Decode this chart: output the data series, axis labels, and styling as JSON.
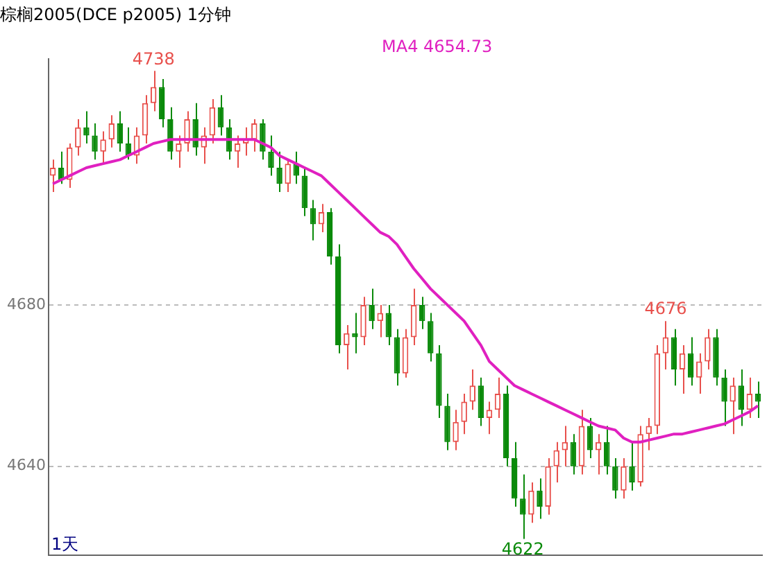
{
  "chart_data": {
    "type": "candlestick",
    "title": "棕榈2005(DCE p2005) 1分钟",
    "categories": [
      null,
      null,
      null,
      null,
      null,
      null,
      null,
      null,
      null,
      null,
      null,
      null,
      null,
      null,
      null,
      null,
      null,
      null,
      null,
      null,
      null,
      null,
      null,
      null,
      null,
      null,
      null,
      null,
      null,
      null,
      null,
      null,
      null,
      null,
      null,
      null,
      null,
      null,
      null,
      null,
      null,
      null,
      null,
      null,
      null,
      null,
      null,
      null,
      null,
      null,
      null,
      null,
      null,
      null,
      null,
      null,
      null,
      null,
      null,
      null,
      null,
      null,
      null,
      null,
      null,
      null,
      null,
      null,
      null,
      null,
      null,
      null,
      null,
      null,
      null,
      null,
      null,
      null,
      null,
      null,
      null,
      null,
      null,
      null,
      null
    ],
    "ohlc": [
      [
        4712,
        4716,
        4708,
        4714
      ],
      [
        4714,
        4718,
        4710,
        4711
      ],
      [
        4711,
        4720,
        4709,
        4719
      ],
      [
        4719,
        4726,
        4717,
        4724
      ],
      [
        4724,
        4728,
        4720,
        4722
      ],
      [
        4722,
        4725,
        4716,
        4718
      ],
      [
        4718,
        4723,
        4715,
        4721
      ],
      [
        4721,
        4727,
        4719,
        4725
      ],
      [
        4725,
        4728,
        4718,
        4720
      ],
      [
        4720,
        4724,
        4716,
        4717
      ],
      [
        4717,
        4724,
        4715,
        4722
      ],
      [
        4722,
        4732,
        4720,
        4730
      ],
      [
        4730,
        4738,
        4728,
        4734
      ],
      [
        4734,
        4736,
        4724,
        4726
      ],
      [
        4726,
        4729,
        4716,
        4718
      ],
      [
        4718,
        4722,
        4714,
        4720
      ],
      [
        4720,
        4728,
        4718,
        4726
      ],
      [
        4726,
        4730,
        4717,
        4719
      ],
      [
        4719,
        4724,
        4715,
        4722
      ],
      [
        4722,
        4731,
        4720,
        4729
      ],
      [
        4729,
        4732,
        4722,
        4724
      ],
      [
        4724,
        4726,
        4716,
        4718
      ],
      [
        4718,
        4722,
        4714,
        4720
      ],
      [
        4720,
        4724,
        4717,
        4721
      ],
      [
        4721,
        4726,
        4718,
        4725
      ],
      [
        4725,
        4726,
        4716,
        4718
      ],
      [
        4718,
        4722,
        4712,
        4714
      ],
      [
        4714,
        4718,
        4708,
        4710
      ],
      [
        4710,
        4716,
        4708,
        4715
      ],
      [
        4715,
        4718,
        4710,
        4712
      ],
      [
        4712,
        4714,
        4702,
        4704
      ],
      [
        4704,
        4706,
        4696,
        4700
      ],
      [
        4700,
        4705,
        4698,
        4703
      ],
      [
        4703,
        4704,
        4690,
        4692
      ],
      [
        4692,
        4695,
        4668,
        4670
      ],
      [
        4670,
        4675,
        4664,
        4673
      ],
      [
        4673,
        4678,
        4668,
        4672
      ],
      [
        4672,
        4682,
        4670,
        4680
      ],
      [
        4680,
        4684,
        4674,
        4676
      ],
      [
        4676,
        4680,
        4672,
        4678
      ],
      [
        4678,
        4680,
        4670,
        4672
      ],
      [
        4672,
        4674,
        4660,
        4663
      ],
      [
        4663,
        4674,
        4662,
        4672
      ],
      [
        4672,
        4684,
        4670,
        4680
      ],
      [
        4680,
        4682,
        4674,
        4676
      ],
      [
        4676,
        4678,
        4666,
        4668
      ],
      [
        4668,
        4670,
        4652,
        4655
      ],
      [
        4655,
        4658,
        4644,
        4646
      ],
      [
        4646,
        4654,
        4644,
        4651
      ],
      [
        4651,
        4658,
        4648,
        4656
      ],
      [
        4656,
        4664,
        4654,
        4660
      ],
      [
        4660,
        4662,
        4650,
        4652
      ],
      [
        4652,
        4656,
        4648,
        4654
      ],
      [
        4654,
        4662,
        4652,
        4658
      ],
      [
        4658,
        4660,
        4640,
        4642
      ],
      [
        4642,
        4646,
        4630,
        4632
      ],
      [
        4632,
        4638,
        4622,
        4628
      ],
      [
        4628,
        4636,
        4626,
        4634
      ],
      [
        4634,
        4637,
        4627,
        4630
      ],
      [
        4630,
        4642,
        4628,
        4640
      ],
      [
        4640,
        4646,
        4636,
        4644
      ],
      [
        4644,
        4650,
        4640,
        4646
      ],
      [
        4646,
        4648,
        4638,
        4640
      ],
      [
        4640,
        4654,
        4638,
        4650
      ],
      [
        4650,
        4652,
        4642,
        4644
      ],
      [
        4644,
        4648,
        4638,
        4646
      ],
      [
        4646,
        4650,
        4638,
        4640
      ],
      [
        4640,
        4642,
        4632,
        4634
      ],
      [
        4634,
        4642,
        4632,
        4640
      ],
      [
        4640,
        4646,
        4634,
        4636
      ],
      [
        4636,
        4650,
        4635,
        4648
      ],
      [
        4648,
        4652,
        4644,
        4650
      ],
      [
        4650,
        4670,
        4648,
        4668
      ],
      [
        4668,
        4676,
        4664,
        4672
      ],
      [
        4672,
        4674,
        4660,
        4664
      ],
      [
        4664,
        4670,
        4658,
        4668
      ],
      [
        4668,
        4672,
        4660,
        4662
      ],
      [
        4662,
        4668,
        4658,
        4666
      ],
      [
        4666,
        4674,
        4664,
        4672
      ],
      [
        4672,
        4674,
        4660,
        4662
      ],
      [
        4662,
        4664,
        4650,
        4656
      ],
      [
        4656,
        4662,
        4648,
        4660
      ],
      [
        4660,
        4664,
        4650,
        4654
      ],
      [
        4654,
        4662,
        4652,
        4658
      ],
      [
        4658,
        4661,
        4652,
        4656
      ]
    ],
    "colors": [
      "#e8504c",
      "#0a8a0a",
      "#e8504c",
      "#e8504c",
      "#0a8a0a",
      "#0a8a0a",
      "#e8504c",
      "#e8504c",
      "#0a8a0a",
      "#0a8a0a",
      "#e8504c",
      "#e8504c",
      "#e8504c",
      "#0a8a0a",
      "#0a8a0a",
      "#e8504c",
      "#e8504c",
      "#0a8a0a",
      "#e8504c",
      "#e8504c",
      "#0a8a0a",
      "#0a8a0a",
      "#e8504c",
      "#e8504c",
      "#e8504c",
      "#0a8a0a",
      "#0a8a0a",
      "#0a8a0a",
      "#e8504c",
      "#0a8a0a",
      "#0a8a0a",
      "#0a8a0a",
      "#e8504c",
      "#0a8a0a",
      "#0a8a0a",
      "#e8504c",
      "#0a8a0a",
      "#e8504c",
      "#0a8a0a",
      "#e8504c",
      "#0a8a0a",
      "#0a8a0a",
      "#e8504c",
      "#e8504c",
      "#0a8a0a",
      "#0a8a0a",
      "#0a8a0a",
      "#0a8a0a",
      "#e8504c",
      "#e8504c",
      "#e8504c",
      "#0a8a0a",
      "#e8504c",
      "#e8504c",
      "#0a8a0a",
      "#0a8a0a",
      "#0a8a0a",
      "#e8504c",
      "#0a8a0a",
      "#e8504c",
      "#e8504c",
      "#e8504c",
      "#0a8a0a",
      "#e8504c",
      "#0a8a0a",
      "#e8504c",
      "#0a8a0a",
      "#0a8a0a",
      "#e8504c",
      "#0a8a0a",
      "#e8504c",
      "#e8504c",
      "#e8504c",
      "#e8504c",
      "#0a8a0a",
      "#e8504c",
      "#0a8a0a",
      "#e8504c",
      "#e8504c",
      "#0a8a0a",
      "#0a8a0a",
      "#e8504c",
      "#0a8a0a",
      "#e8504c",
      "#0a8a0a"
    ],
    "series": [
      {
        "type": "line",
        "name": "MA4 4654.73",
        "color": "#e020c0",
        "values": [
          4710,
          4711,
          4712,
          4713,
          4714,
          4714.5,
          4715,
          4715.5,
          4716,
          4717,
          4718,
          4719,
          4720,
          4720.5,
          4721,
          4721,
          4721,
          4721,
          4721,
          4721,
          4721,
          4721,
          4721,
          4721,
          4721,
          4720,
          4719,
          4717,
          4716,
          4715,
          4714,
          4713,
          4712,
          4710,
          4708,
          4706,
          4704,
          4702,
          4700,
          4698,
          4697,
          4695,
          4692,
          4689,
          4686.5,
          4684,
          4682,
          4680,
          4678,
          4676,
          4673,
          4670,
          4666,
          4664,
          4662,
          4660,
          4659,
          4658,
          4657,
          4656,
          4655,
          4654,
          4653,
          4652,
          4651,
          4650,
          4649.5,
          4649,
          4647,
          4646,
          4646,
          4646.5,
          4647,
          4647.5,
          4648,
          4648,
          4648.5,
          4649,
          4649.5,
          4650,
          4650.5,
          4651.5,
          4652.5,
          4653.5,
          4655
        ]
      }
    ],
    "ylim": [
      4618,
      4741
    ],
    "yticks": [
      4640,
      4680
    ],
    "grid": "y",
    "legend": "top",
    "tick_labels": "y",
    "marker": "none",
    "annotations": [
      {
        "text": "4738",
        "y": 4738
      },
      {
        "text": "4622",
        "y": 4622
      },
      {
        "text": "4676",
        "y": 4676
      },
      "1天"
    ]
  }
}
